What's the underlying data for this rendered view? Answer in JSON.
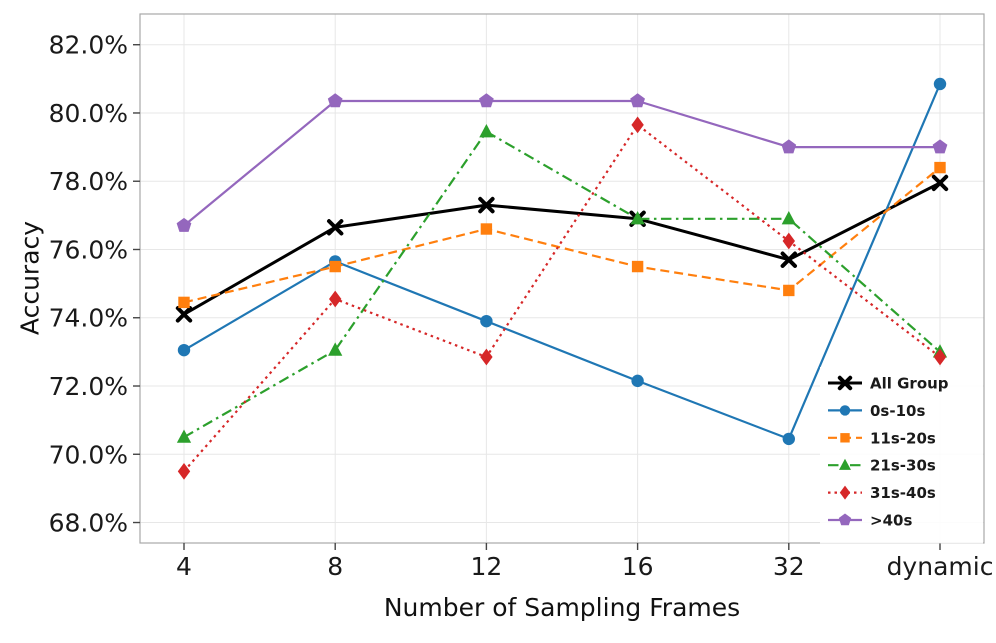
{
  "chart_data": {
    "type": "line",
    "title": "",
    "xlabel": "Number of Sampling Frames",
    "ylabel": "Accuracy",
    "categories": [
      "4",
      "8",
      "12",
      "16",
      "32",
      "dynamic"
    ],
    "series": [
      {
        "name": "All Group",
        "color": "#000000",
        "marker": "x",
        "linestyle": "solid",
        "linewidth": 3.0,
        "values": [
          74.1,
          76.65,
          77.3,
          76.9,
          75.7,
          77.95
        ]
      },
      {
        "name": "0s-10s",
        "color": "#1f77b4",
        "marker": "circle",
        "linestyle": "solid",
        "linewidth": 2.2,
        "values": [
          73.05,
          75.65,
          73.9,
          72.15,
          70.45,
          80.85
        ]
      },
      {
        "name": "11s-20s",
        "color": "#ff7f0e",
        "marker": "square",
        "linestyle": "dashed",
        "linewidth": 2.2,
        "values": [
          74.45,
          75.5,
          76.6,
          75.5,
          74.8,
          78.4
        ]
      },
      {
        "name": "21s-30s",
        "color": "#2ca02c",
        "marker": "triangle",
        "linestyle": "dashdot",
        "linewidth": 2.2,
        "values": [
          70.5,
          73.05,
          79.45,
          76.9,
          76.9,
          73.0
        ]
      },
      {
        "name": "31s-40s",
        "color": "#d62728",
        "marker": "diamond",
        "linestyle": "dotted",
        "linewidth": 2.2,
        "values": [
          69.5,
          74.55,
          72.85,
          79.65,
          76.25,
          72.85
        ]
      },
      {
        "name": ">40s",
        "color": "#9467bd",
        "marker": "pentagon",
        "linestyle": "solid",
        "linewidth": 2.2,
        "values": [
          76.7,
          80.35,
          80.35,
          80.35,
          79.0,
          79.0
        ]
      }
    ],
    "ylim": [
      67.4,
      82.9
    ],
    "yticks": [
      68.0,
      70.0,
      72.0,
      74.0,
      76.0,
      78.0,
      80.0,
      82.0
    ],
    "ytick_suffix": "%",
    "grid": true,
    "legend_position": "lower-right",
    "colors": {
      "grid": "#e7e7e7",
      "spine": "#a8a8a8",
      "tick": "#444444",
      "tick_label": "#1a1a1a",
      "legend_text": "#1a1a1a",
      "background": "#ffffff"
    }
  }
}
